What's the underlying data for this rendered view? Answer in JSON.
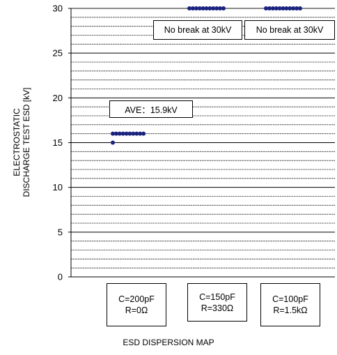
{
  "chart_data": {
    "type": "scatter",
    "title": "",
    "xlabel": "ESD DISPERSION MAP",
    "ylabel_lines": [
      "ELECTROSTATIC",
      "DISCHARGE TEST ESD [kV]"
    ],
    "ylim": [
      0,
      30
    ],
    "y_ticks": [
      0,
      5,
      10,
      15,
      20,
      25,
      30
    ],
    "grid": true,
    "categories": [
      {
        "line1": "C=200pF",
        "line2": "R=0Ω"
      },
      {
        "line1": "C=150pF",
        "line2": "R=330Ω"
      },
      {
        "line1": "C=100pF",
        "line2": "R=1.5kΩ"
      }
    ],
    "series": [
      {
        "category_index": 0,
        "values": [
          15,
          16,
          16,
          16,
          16,
          16,
          16,
          16,
          16,
          16,
          16
        ]
      },
      {
        "category_index": 1,
        "values": [
          30,
          30,
          30,
          30,
          30,
          30,
          30,
          30,
          30,
          30,
          30
        ]
      },
      {
        "category_index": 2,
        "values": [
          30,
          30,
          30,
          30,
          30,
          30,
          30,
          30,
          30,
          30,
          30
        ]
      }
    ],
    "annotations": [
      "AVE：15.9kV",
      "No break at 30kV",
      "No break at 30kV"
    ],
    "marker_color": "#1a237e"
  }
}
